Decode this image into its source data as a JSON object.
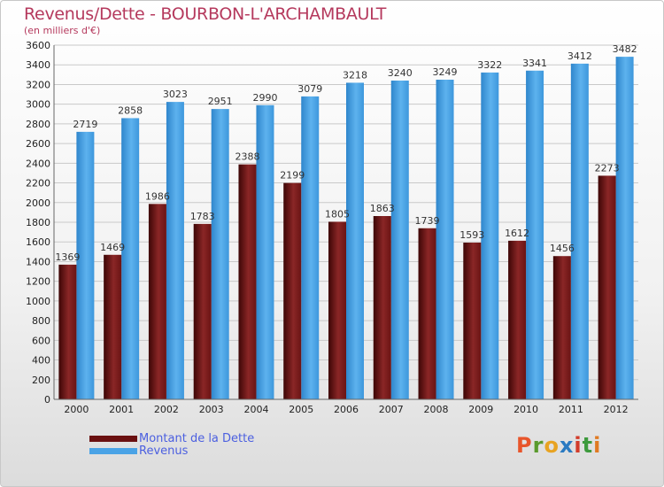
{
  "title": "Revenus/Dette - BOURBON-L'ARCHAMBAULT",
  "subtitle": "(en milliers d'€)",
  "colors": {
    "dette": "#7a1a1a",
    "revenus": "#4aa3e6",
    "title": "#b5395d",
    "legend_text": "#4b5fe0"
  },
  "legend": {
    "dette_label": "Montant de la Dette",
    "revenus_label": "Revenus"
  },
  "logo": {
    "text": "Proxiti",
    "letters": [
      "P",
      "r",
      "o",
      "x",
      "i",
      "t",
      "i"
    ],
    "colors": [
      "#e8552b",
      "#5a9a2d",
      "#e8a321",
      "#2a7ac1",
      "#d23c2a",
      "#3d9a3d",
      "#e07a22"
    ]
  },
  "chart_data": {
    "type": "bar",
    "categories": [
      "2000",
      "2001",
      "2002",
      "2003",
      "2004",
      "2005",
      "2006",
      "2007",
      "2008",
      "2009",
      "2010",
      "2011",
      "2012"
    ],
    "series": [
      {
        "name": "Montant de la Dette",
        "values": [
          1369,
          1469,
          1986,
          1783,
          2388,
          2199,
          1805,
          1863,
          1739,
          1593,
          1612,
          1456,
          2273
        ],
        "labels": [
          "1369",
          "1469",
          "1986",
          "1783",
          "2388",
          "2199",
          "1805",
          "1863",
          "1739",
          "1593",
          "1612",
          "1456",
          "2273"
        ]
      },
      {
        "name": "Revenus",
        "values": [
          2719,
          2858,
          3023,
          2951,
          2990,
          3079,
          3218,
          3240,
          3249,
          3322,
          3341,
          3412,
          3482
        ],
        "labels": [
          "2719",
          "2858",
          "3023",
          "2951",
          "2990",
          "3079",
          "3218",
          "3240",
          "3249",
          "3322",
          "3341",
          "3412",
          "3482"
        ]
      }
    ],
    "yticks": [
      "0",
      "200",
      "400",
      "600",
      "800",
      "1000",
      "1200",
      "1400",
      "1600",
      "1800",
      "2000",
      "2200",
      "2400",
      "2600",
      "2800",
      "3000",
      "3200",
      "3400",
      "3600"
    ],
    "ylim": [
      0,
      3600
    ],
    "grid": true,
    "legend_position": "bottom-left"
  }
}
